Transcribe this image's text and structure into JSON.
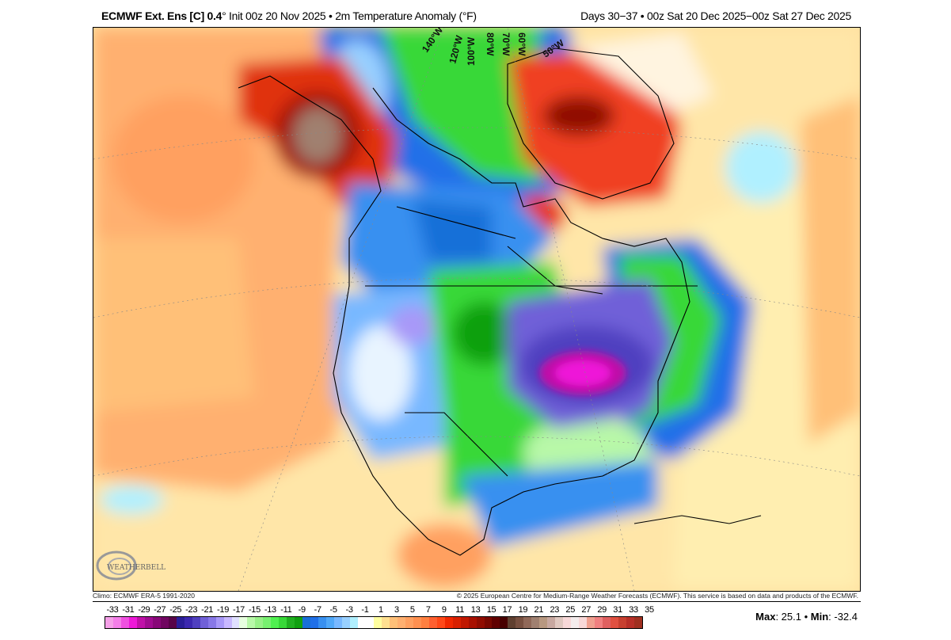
{
  "header": {
    "model": "ECMWF Ext. Ens [C] 0.4",
    "degree": "°",
    "init": " Init 00z 20 Nov 2025 • 2m Temperature Anomaly (°F)",
    "valid": "Days 30−37 • 00z Sat 20 Dec 2025−00z Sat 27 Dec 2025"
  },
  "map": {
    "longitude_labels": [
      "140°W",
      "120°W",
      "100°W",
      "80°W",
      "70°W",
      "60°W",
      "50°W"
    ],
    "logo_text": "WEATHERBELL Analytics LLC"
  },
  "footer": {
    "climo": "Climo: ECMWF ERA-5 1991-2020",
    "copyright": "© 2025 European Centre for Medium-Range Weather Forecasts (ECMWF). This service is based on data and products of the ECMWF."
  },
  "colorbar": {
    "labels": [
      "-33",
      "-31",
      "-29",
      "-27",
      "-25",
      "-23",
      "-21",
      "-19",
      "-17",
      "-15",
      "-13",
      "-11",
      "-9",
      "-7",
      "-5",
      "-3",
      "-1",
      "1",
      "3",
      "5",
      "7",
      "9",
      "11",
      "13",
      "15",
      "17",
      "19",
      "21",
      "23",
      "25",
      "27",
      "29",
      "31",
      "33",
      "35"
    ],
    "colors": [
      "#f5a0e8",
      "#f47ee8",
      "#f050e0",
      "#ee18d8",
      "#c010a8",
      "#a00c90",
      "#880878",
      "#700660",
      "#580448",
      "#2a1e98",
      "#3c28b0",
      "#5040c0",
      "#7060d8",
      "#8878e8",
      "#a898f8",
      "#c8b8ff",
      "#e0e0ff",
      "#e8ffe0",
      "#b8f8a8",
      "#98f088",
      "#78f070",
      "#50f050",
      "#38d838",
      "#20b020",
      "#10a010",
      "#1870d8",
      "#2070e8",
      "#3890f0",
      "#50a8f8",
      "#78b8ff",
      "#98d0ff",
      "#b0f0ff",
      "#ffffff",
      "#ffffff",
      "#ffffa0",
      "#ffe090",
      "#ffc078",
      "#ffb070",
      "#ffa060",
      "#ff9050",
      "#ff8040",
      "#ff6030",
      "#ff4818",
      "#f02800",
      "#d82000",
      "#c01800",
      "#a81000",
      "#900c00",
      "#780800",
      "#600000",
      "#480000",
      "#604030",
      "#785040",
      "#906858",
      "#a08070",
      "#b89880",
      "#c8a8a0",
      "#e0c8c0",
      "#f8d8d8",
      "#f4ecec",
      "#f8d8d8",
      "#f0a090",
      "#f08080",
      "#e06060",
      "#e05040",
      "#c84030",
      "#b83028",
      "#a03020"
    ]
  },
  "stats": {
    "max_label": "Max",
    "max_value": ": 25.1 • ",
    "min_label": "Min",
    "min_value": ": -32.4"
  }
}
